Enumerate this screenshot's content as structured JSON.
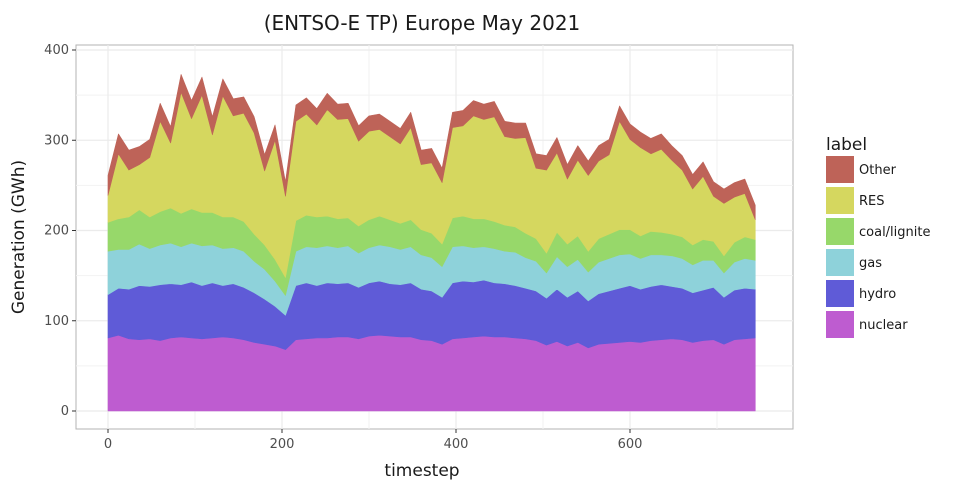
{
  "chart_data": {
    "type": "area",
    "stacked": true,
    "title": "(ENTSO-E TP) Europe May 2021",
    "xlabel": "timestep",
    "ylabel": "Generation (GWh)",
    "xlim": [
      0,
      744
    ],
    "ylim": [
      0,
      400
    ],
    "xticks": [
      0,
      200,
      400,
      600
    ],
    "yticks": [
      0,
      100,
      200,
      300,
      400
    ],
    "grid": true,
    "legend_title": "label",
    "legend_position": "right",
    "x": [
      0,
      12,
      24,
      36,
      48,
      60,
      72,
      84,
      96,
      108,
      120,
      132,
      144,
      156,
      168,
      180,
      192,
      204,
      216,
      228,
      240,
      252,
      264,
      276,
      288,
      300,
      312,
      324,
      336,
      348,
      360,
      372,
      384,
      396,
      408,
      420,
      432,
      444,
      456,
      468,
      480,
      492,
      504,
      516,
      528,
      540,
      552,
      564,
      576,
      588,
      600,
      612,
      624,
      636,
      648,
      660,
      672,
      684,
      696,
      708,
      720,
      732,
      744
    ],
    "series": [
      {
        "name": "nuclear",
        "color": "#BE5CD0",
        "values": [
          81,
          84,
          80,
          79,
          80,
          78,
          81,
          82,
          81,
          80,
          81,
          82,
          81,
          79,
          76,
          74,
          72,
          68,
          79,
          80,
          81,
          81,
          82,
          82,
          80,
          83,
          84,
          83,
          82,
          82,
          79,
          78,
          74,
          80,
          81,
          82,
          83,
          82,
          82,
          81,
          80,
          78,
          73,
          77,
          72,
          76,
          70,
          74,
          75,
          76,
          77,
          76,
          78,
          79,
          80,
          79,
          76,
          78,
          79,
          74,
          79,
          80,
          81
        ]
      },
      {
        "name": "hydro",
        "color": "#5F5BD7",
        "values": [
          48,
          52,
          55,
          60,
          58,
          62,
          60,
          58,
          62,
          59,
          61,
          57,
          60,
          58,
          55,
          50,
          44,
          38,
          60,
          62,
          58,
          61,
          59,
          60,
          57,
          59,
          60,
          58,
          58,
          60,
          56,
          55,
          52,
          62,
          63,
          61,
          62,
          60,
          59,
          58,
          56,
          55,
          52,
          58,
          54,
          57,
          52,
          56,
          58,
          60,
          62,
          59,
          60,
          61,
          58,
          57,
          55,
          56,
          58,
          52,
          55,
          56,
          54
        ]
      },
      {
        "name": "gas",
        "color": "#8ED2DA",
        "values": [
          48,
          43,
          44,
          46,
          42,
          44,
          45,
          42,
          43,
          44,
          42,
          41,
          40,
          40,
          35,
          33,
          28,
          22,
          38,
          40,
          42,
          41,
          40,
          41,
          38,
          39,
          40,
          41,
          39,
          40,
          38,
          37,
          34,
          40,
          39,
          38,
          37,
          38,
          36,
          37,
          34,
          33,
          28,
          36,
          34,
          35,
          32,
          35,
          36,
          37,
          35,
          34,
          35,
          33,
          34,
          33,
          31,
          33,
          30,
          27,
          31,
          33,
          32
        ]
      },
      {
        "name": "coal/lignite",
        "color": "#97D86A",
        "values": [
          32,
          34,
          36,
          38,
          35,
          37,
          39,
          37,
          38,
          37,
          36,
          35,
          34,
          33,
          30,
          27,
          24,
          20,
          34,
          35,
          34,
          33,
          32,
          31,
          30,
          31,
          32,
          30,
          29,
          30,
          28,
          27,
          25,
          32,
          33,
          32,
          31,
          30,
          29,
          28,
          27,
          25,
          22,
          27,
          25,
          26,
          23,
          26,
          27,
          28,
          27,
          25,
          26,
          25,
          24,
          24,
          22,
          23,
          21,
          19,
          22,
          24,
          23
        ]
      },
      {
        "name": "RES",
        "color": "#D5D75F",
        "values": [
          30,
          72,
          52,
          50,
          66,
          100,
          72,
          134,
          100,
          130,
          86,
          134,
          112,
          120,
          112,
          82,
          132,
          90,
          110,
          112,
          102,
          118,
          110,
          110,
          94,
          98,
          96,
          92,
          88,
          102,
          72,
          78,
          68,
          100,
          100,
          114,
          110,
          116,
          98,
          98,
          106,
          78,
          92,
          88,
          72,
          84,
          84,
          86,
          88,
          120,
          100,
          98,
          86,
          92,
          82,
          74,
          62,
          70,
          50,
          58,
          50,
          48,
          22
        ]
      },
      {
        "name": "Other",
        "color": "#BE6358",
        "values": [
          22,
          22,
          22,
          20,
          20,
          20,
          18,
          20,
          20,
          20,
          20,
          19,
          19,
          18,
          18,
          18,
          17,
          16,
          18,
          18,
          18,
          18,
          17,
          17,
          17,
          17,
          17,
          17,
          17,
          17,
          16,
          16,
          16,
          17,
          17,
          17,
          17,
          17,
          17,
          17,
          16,
          16,
          16,
          17,
          16,
          16,
          16,
          17,
          17,
          17,
          17,
          17,
          17,
          17,
          16,
          16,
          16,
          16,
          16,
          16,
          16,
          16,
          16
        ]
      }
    ]
  }
}
